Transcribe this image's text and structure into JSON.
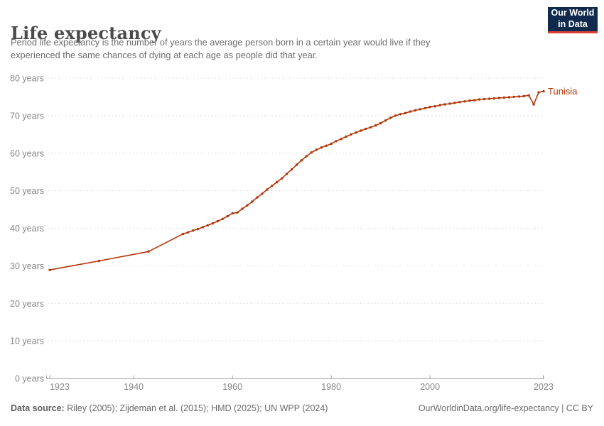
{
  "header": {
    "title": "Life expectancy",
    "subtitle": {
      "lines": [
        "Period life expectancy is the number of years the average person born in a certain year would live if they",
        "experienced the same chances of dying at each age as people did that year.",
        "Period life expectancy is the number of years the average person born in a certain year would live if they experienced the same chances of dying at each age as people did that year."
      ]
    },
    "logo": {
      "line1": "Our World",
      "line2": "in Data",
      "background": "#102a4e",
      "stripe": "#dc3e33"
    }
  },
  "footer": {
    "source_label": "Data source:",
    "source_text": " Riley (2005); Zijdeman et al. (2015); HMD (2025); UN WPP (2024)",
    "right_text": "OurWorldinData.org/life-expectancy | CC BY"
  },
  "chart_data": {
    "type": "line",
    "title": "Life expectancy",
    "entity": "Tunisia",
    "unit": "years",
    "line_color": "#b13507",
    "grid": true,
    "grid_color": "#dedede",
    "axis_color": "#a3a3a3",
    "tick_text_color": "#878787",
    "xlim": [
      1923,
      2023
    ],
    "ylim": [
      0,
      80
    ],
    "x_ticks": [
      1923,
      1940,
      1960,
      1980,
      2000,
      2023
    ],
    "y_ticks": [
      0,
      10,
      20,
      30,
      40,
      50,
      60,
      70,
      80
    ],
    "y_tick_label_suffix": " years",
    "legend_position": "end-of-line-label",
    "points": [
      [
        1923,
        28.9
      ],
      [
        1933,
        31.3
      ],
      [
        1943,
        33.8
      ],
      [
        1950,
        38.5
      ],
      [
        1951,
        38.9
      ],
      [
        1952,
        39.4
      ],
      [
        1953,
        39.8
      ],
      [
        1954,
        40.3
      ],
      [
        1955,
        40.8
      ],
      [
        1956,
        41.3
      ],
      [
        1957,
        41.9
      ],
      [
        1958,
        42.5
      ],
      [
        1959,
        43.2
      ],
      [
        1960,
        44.0
      ],
      [
        1961,
        44.2
      ],
      [
        1962,
        45.2
      ],
      [
        1963,
        46.1
      ],
      [
        1964,
        47.1
      ],
      [
        1965,
        48.2
      ],
      [
        1966,
        49.2
      ],
      [
        1967,
        50.3
      ],
      [
        1968,
        51.3
      ],
      [
        1969,
        52.3
      ],
      [
        1970,
        53.3
      ],
      [
        1971,
        54.5
      ],
      [
        1972,
        55.7
      ],
      [
        1973,
        56.9
      ],
      [
        1974,
        58.1
      ],
      [
        1975,
        59.2
      ],
      [
        1976,
        60.2
      ],
      [
        1977,
        60.9
      ],
      [
        1978,
        61.5
      ],
      [
        1979,
        62.0
      ],
      [
        1980,
        62.5
      ],
      [
        1981,
        63.2
      ],
      [
        1982,
        63.8
      ],
      [
        1983,
        64.4
      ],
      [
        1984,
        65.0
      ],
      [
        1985,
        65.5
      ],
      [
        1986,
        66.0
      ],
      [
        1987,
        66.5
      ],
      [
        1988,
        66.9
      ],
      [
        1989,
        67.4
      ],
      [
        1990,
        68.0
      ],
      [
        1991,
        68.7
      ],
      [
        1992,
        69.4
      ],
      [
        1993,
        70.0
      ],
      [
        1994,
        70.4
      ],
      [
        1995,
        70.7
      ],
      [
        1996,
        71.1
      ],
      [
        1997,
        71.4
      ],
      [
        1998,
        71.7
      ],
      [
        1999,
        72.0
      ],
      [
        2000,
        72.3
      ],
      [
        2001,
        72.5
      ],
      [
        2002,
        72.8
      ],
      [
        2003,
        73.0
      ],
      [
        2004,
        73.2
      ],
      [
        2005,
        73.4
      ],
      [
        2006,
        73.6
      ],
      [
        2007,
        73.8
      ],
      [
        2008,
        74.0
      ],
      [
        2009,
        74.1
      ],
      [
        2010,
        74.3
      ],
      [
        2011,
        74.4
      ],
      [
        2012,
        74.5
      ],
      [
        2013,
        74.6
      ],
      [
        2014,
        74.7
      ],
      [
        2015,
        74.8
      ],
      [
        2016,
        74.9
      ],
      [
        2017,
        75.0
      ],
      [
        2018,
        75.1
      ],
      [
        2019,
        75.2
      ],
      [
        2020,
        75.4
      ],
      [
        2021,
        73.0
      ],
      [
        2022,
        76.2
      ],
      [
        2023,
        76.5
      ]
    ]
  }
}
